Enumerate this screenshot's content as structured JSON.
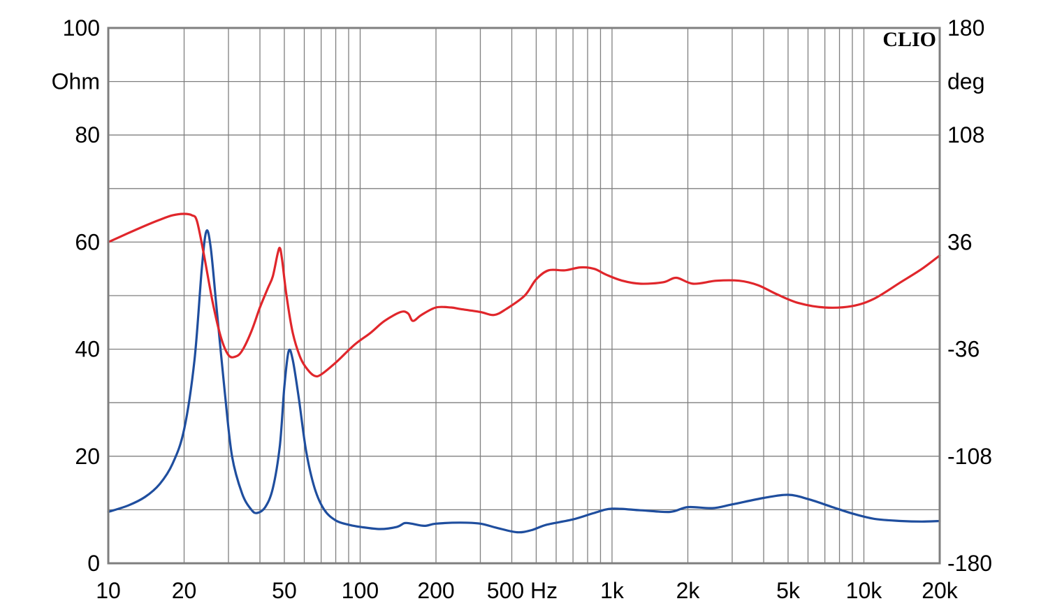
{
  "chart_data": {
    "type": "line",
    "title": "",
    "brand": "CLIO",
    "x_scale": "log",
    "xlim": [
      10,
      20000
    ],
    "x_tick_labels": [
      {
        "value": 10,
        "label": "10"
      },
      {
        "value": 20,
        "label": "20"
      },
      {
        "value": 50,
        "label": "50"
      },
      {
        "value": 100,
        "label": "100"
      },
      {
        "value": 200,
        "label": "200"
      },
      {
        "value": 500,
        "label": "500 Hz"
      },
      {
        "value": 1000,
        "label": "1k"
      },
      {
        "value": 2000,
        "label": "2k"
      },
      {
        "value": 5000,
        "label": "5k"
      },
      {
        "value": 10000,
        "label": "10k"
      },
      {
        "value": 20000,
        "label": "20k"
      }
    ],
    "y_left": {
      "unit": "Ohm",
      "ylim": [
        0,
        100
      ],
      "ticks": [
        "0",
        "20",
        "40",
        "60",
        "80",
        "100"
      ]
    },
    "y_right": {
      "unit": "deg",
      "ylim": [
        -180,
        180
      ],
      "ticks": [
        "-180",
        "-108",
        "-36",
        "36",
        "108",
        "180"
      ]
    },
    "grid": true,
    "series": [
      {
        "axis": "left",
        "color": "#1f4e9e",
        "points": [
          [
            10,
            9.6
          ],
          [
            12,
            10.8
          ],
          [
            14,
            12.4
          ],
          [
            16,
            14.8
          ],
          [
            18,
            18.6
          ],
          [
            20,
            25
          ],
          [
            22,
            38
          ],
          [
            23.5,
            55
          ],
          [
            24.5,
            62
          ],
          [
            25.5,
            59
          ],
          [
            27,
            47
          ],
          [
            29,
            32
          ],
          [
            31,
            20
          ],
          [
            34,
            13
          ],
          [
            37,
            10
          ],
          [
            39,
            9.4
          ],
          [
            42,
            10.5
          ],
          [
            45,
            14
          ],
          [
            48,
            22
          ],
          [
            50,
            33
          ],
          [
            52,
            39.6
          ],
          [
            54,
            38
          ],
          [
            57,
            31
          ],
          [
            61,
            21
          ],
          [
            66,
            14
          ],
          [
            72,
            10
          ],
          [
            80,
            8
          ],
          [
            90,
            7.2
          ],
          [
            100,
            6.8
          ],
          [
            120,
            6.4
          ],
          [
            140,
            6.8
          ],
          [
            150,
            7.5
          ],
          [
            160,
            7.4
          ],
          [
            180,
            7
          ],
          [
            200,
            7.4
          ],
          [
            250,
            7.6
          ],
          [
            300,
            7.4
          ],
          [
            350,
            6.6
          ],
          [
            420,
            5.8
          ],
          [
            480,
            6.2
          ],
          [
            550,
            7.2
          ],
          [
            700,
            8.2
          ],
          [
            850,
            9.4
          ],
          [
            1000,
            10.2
          ],
          [
            1300,
            9.9
          ],
          [
            1700,
            9.6
          ],
          [
            2000,
            10.5
          ],
          [
            2500,
            10.3
          ],
          [
            3000,
            11
          ],
          [
            4000,
            12.2
          ],
          [
            5000,
            12.8
          ],
          [
            6000,
            12
          ],
          [
            7500,
            10.5
          ],
          [
            9000,
            9.3
          ],
          [
            11000,
            8.3
          ],
          [
            14000,
            7.9
          ],
          [
            17000,
            7.8
          ],
          [
            20000,
            7.9
          ]
        ]
      },
      {
        "axis": "right",
        "color": "#e0262b",
        "points": [
          [
            10,
            36
          ],
          [
            12,
            42
          ],
          [
            14,
            47
          ],
          [
            16,
            51
          ],
          [
            18,
            54
          ],
          [
            20,
            55
          ],
          [
            21.5,
            54
          ],
          [
            22.5,
            50
          ],
          [
            24,
            27
          ],
          [
            26,
            -5
          ],
          [
            28,
            -28
          ],
          [
            30,
            -40
          ],
          [
            32,
            -41
          ],
          [
            34,
            -37
          ],
          [
            37,
            -24
          ],
          [
            40,
            -8
          ],
          [
            43,
            5
          ],
          [
            45,
            13
          ],
          [
            47,
            28
          ],
          [
            48,
            32
          ],
          [
            49,
            24
          ],
          [
            51,
            0
          ],
          [
            54,
            -25
          ],
          [
            58,
            -42
          ],
          [
            62,
            -50
          ],
          [
            66,
            -54
          ],
          [
            70,
            -53
          ],
          [
            80,
            -45
          ],
          [
            95,
            -33
          ],
          [
            110,
            -25
          ],
          [
            125,
            -17
          ],
          [
            145,
            -11
          ],
          [
            155,
            -12
          ],
          [
            162,
            -17
          ],
          [
            175,
            -13
          ],
          [
            200,
            -8
          ],
          [
            230,
            -8
          ],
          [
            250,
            -9
          ],
          [
            300,
            -11
          ],
          [
            340,
            -13
          ],
          [
            380,
            -9
          ],
          [
            450,
            0
          ],
          [
            500,
            11
          ],
          [
            560,
            17
          ],
          [
            650,
            17
          ],
          [
            750,
            19
          ],
          [
            850,
            18
          ],
          [
            950,
            14
          ],
          [
            1100,
            10
          ],
          [
            1300,
            8
          ],
          [
            1600,
            9
          ],
          [
            1800,
            12
          ],
          [
            2100,
            8
          ],
          [
            2600,
            10
          ],
          [
            3200,
            10
          ],
          [
            3800,
            7
          ],
          [
            4500,
            1
          ],
          [
            5500,
            -5
          ],
          [
            7000,
            -8
          ],
          [
            9000,
            -7
          ],
          [
            11000,
            -2
          ],
          [
            14000,
            9
          ],
          [
            17000,
            18
          ],
          [
            20000,
            27
          ]
        ]
      }
    ]
  }
}
